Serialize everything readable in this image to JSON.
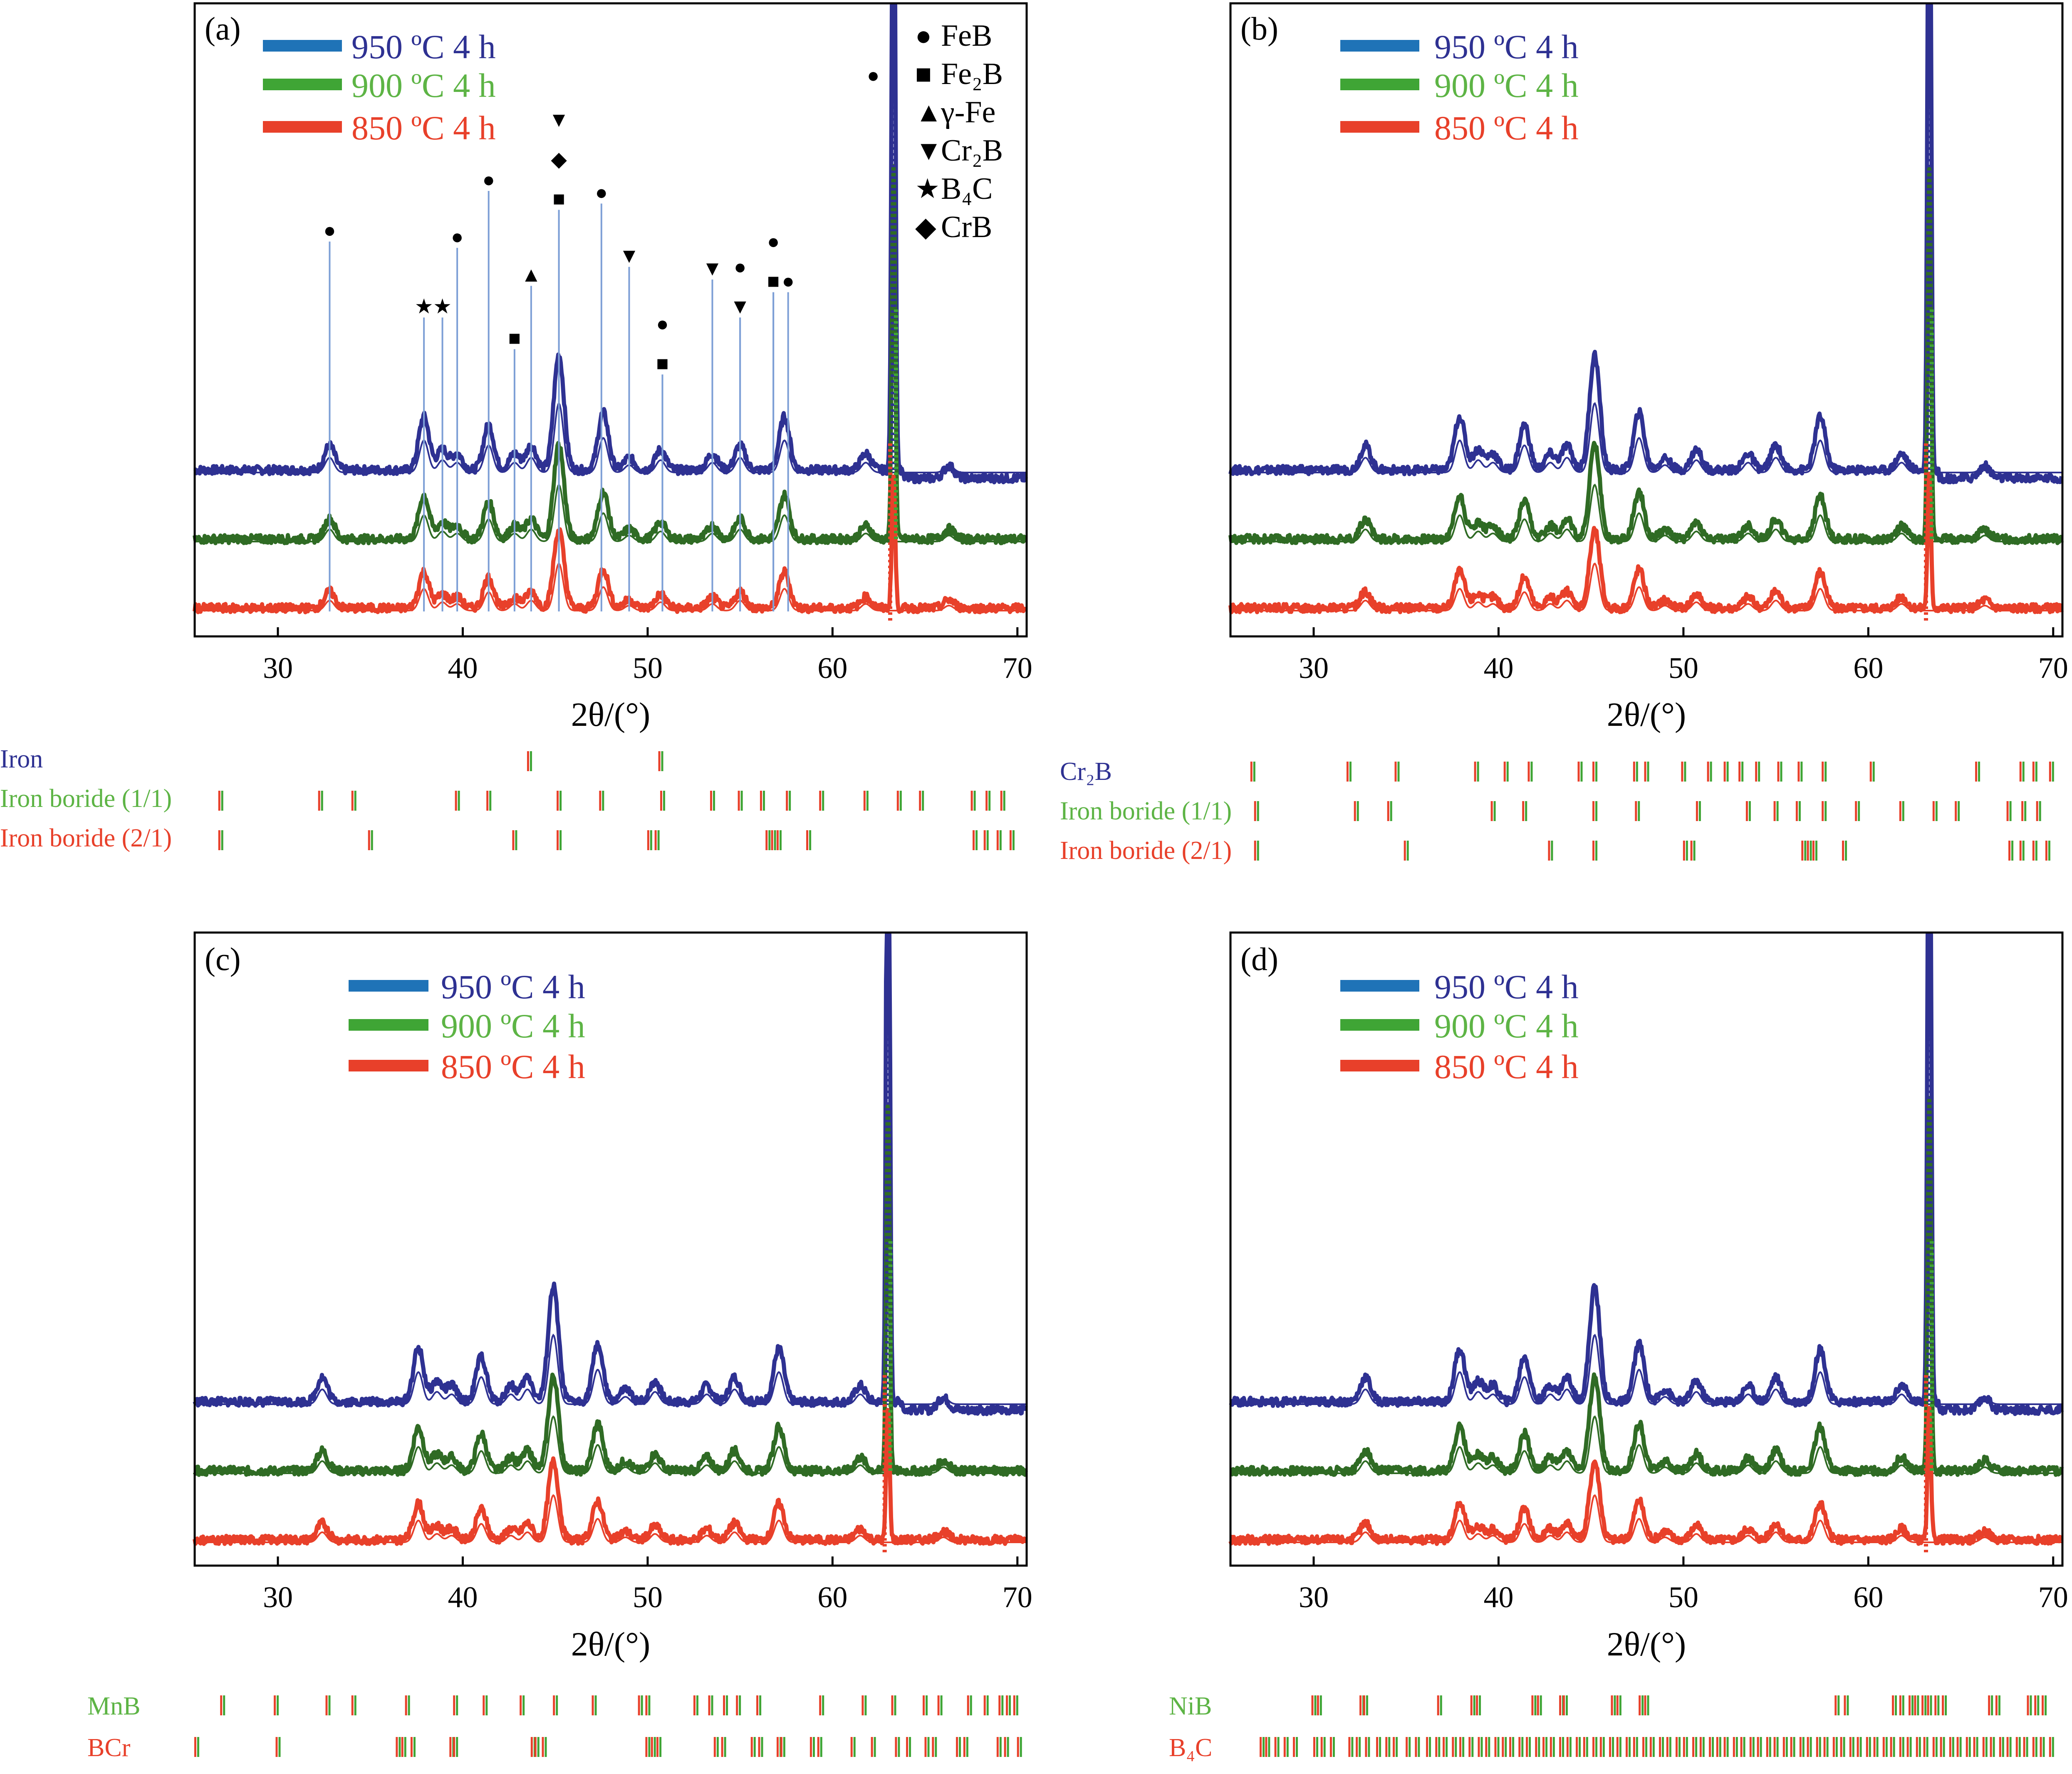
{
  "figure": {
    "colors": {
      "blue": "#2E3192",
      "legend_blue": "#1F73B7",
      "green": "#2F6B24",
      "legend_green": "#3FA535",
      "red": "#E8402A",
      "ref_line": "#7D9FD6",
      "text_blue": "#2E3192",
      "text_green": "#5DB445",
      "text_red": "#E8402A"
    },
    "xlabel": "2θ/(°)",
    "legend": [
      "950 ºC 4 h",
      "900 ºC 4 h",
      "850 ºC 4 h"
    ]
  },
  "chart_data": [
    {
      "panel": "(a)",
      "type": "line",
      "xlabel": "2θ/(°)",
      "xlim": [
        25.5,
        70.5
      ],
      "xticks": [
        30,
        40,
        50,
        60,
        70
      ],
      "series": [
        {
          "name": "950 ºC 4 h",
          "color": "#2E3192"
        },
        {
          "name": "900 ºC 4 h",
          "color": "#2F6B24"
        },
        {
          "name": "850 ºC 4 h",
          "color": "#E8402A"
        }
      ],
      "sharp_peak": {
        "x": 63.3,
        "overshoots_axis": true
      },
      "peaks": [
        {
          "x": 32.8,
          "h": 0.06
        },
        {
          "x": 37.9,
          "h": 0.13
        },
        {
          "x": 38.9,
          "h": 0.05
        },
        {
          "x": 39.7,
          "h": 0.04
        },
        {
          "x": 41.4,
          "h": 0.11
        },
        {
          "x": 42.8,
          "h": 0.04
        },
        {
          "x": 43.7,
          "h": 0.06
        },
        {
          "x": 45.2,
          "h": 0.28
        },
        {
          "x": 47.6,
          "h": 0.14
        },
        {
          "x": 49.0,
          "h": 0.03
        },
        {
          "x": 50.7,
          "h": 0.05
        },
        {
          "x": 53.5,
          "h": 0.04
        },
        {
          "x": 55.0,
          "h": 0.06
        },
        {
          "x": 57.4,
          "h": 0.13
        },
        {
          "x": 61.8,
          "h": 0.04
        },
        {
          "x": 66.3,
          "h": 0.03
        }
      ],
      "phase_markers": [
        {
          "x": 32.8,
          "symbol": "●",
          "phase": "FeB",
          "line_top": 0.35
        },
        {
          "x": 37.9,
          "symbol": "★",
          "phase": "B4C",
          "line_top": 0.47
        },
        {
          "x": 38.9,
          "symbol": "★",
          "phase": "B4C",
          "line_top": 0.47
        },
        {
          "x": 39.7,
          "symbol": "●",
          "phase": "FeB",
          "line_top": 0.36
        },
        {
          "x": 41.4,
          "symbol": "●",
          "phase": "FeB",
          "line_top": 0.27
        },
        {
          "x": 42.8,
          "symbol": "■",
          "phase": "Fe2B",
          "line_top": 0.52
        },
        {
          "x": 43.7,
          "symbol": "▲",
          "phase": "γ-Fe",
          "line_top": 0.42
        },
        {
          "x": 45.2,
          "symbol": "■",
          "phase": "Fe2B",
          "line_top": 0.3
        },
        {
          "x": 45.2,
          "symbol": "◆",
          "phase": "CrB",
          "line_top": 0.3
        },
        {
          "x": 45.2,
          "symbol": "▼",
          "phase": "Cr2B",
          "line_top": 0.3
        },
        {
          "x": 47.5,
          "symbol": "●",
          "phase": "FeB",
          "line_top": 0.29
        },
        {
          "x": 49.0,
          "symbol": "▼",
          "phase": "Cr2B",
          "line_top": 0.39
        },
        {
          "x": 50.8,
          "symbol": "■",
          "phase": "Fe2B",
          "line_top": 0.56
        },
        {
          "x": 50.8,
          "symbol": "●",
          "phase": "FeB",
          "line_top": 0.56
        },
        {
          "x": 53.5,
          "symbol": "▼",
          "phase": "Cr2B",
          "line_top": 0.41
        },
        {
          "x": 55.0,
          "symbol": "▼",
          "phase": "Cr2B",
          "line_top": 0.47
        },
        {
          "x": 55.0,
          "symbol": "●",
          "phase": "FeB",
          "line_top": 0.47
        },
        {
          "x": 56.8,
          "symbol": "■",
          "phase": "Fe2B",
          "line_top": 0.43
        },
        {
          "x": 56.8,
          "symbol": "●",
          "phase": "FeB",
          "line_top": 0.43
        },
        {
          "x": 57.6,
          "symbol": "●",
          "phase": "FeB",
          "line_top": 0.43
        },
        {
          "x": 62.2,
          "symbol": "●",
          "phase": "FeB",
          "line_top": 0.0
        }
      ],
      "phase_legend": [
        {
          "symbol": "●",
          "label": "FeB"
        },
        {
          "symbol": "■",
          "label": "Fe₂B"
        },
        {
          "symbol": "▲",
          "label": "γ-Fe"
        },
        {
          "symbol": "▼",
          "label": "Cr₂B"
        },
        {
          "symbol": "★",
          "label": "B₄C"
        },
        {
          "symbol": "◆",
          "label": "CrB"
        }
      ],
      "reference_rows": [
        {
          "label": "Iron",
          "color": "#2E3192",
          "x": [
            43.6,
            50.7
          ]
        },
        {
          "label": "Iron boride (1/1)",
          "color": "#5DB445",
          "x": [
            26.9,
            32.3,
            34.1,
            39.7,
            41.4,
            45.2,
            47.5,
            50.8,
            53.5,
            55.0,
            56.2,
            57.6,
            59.4,
            61.8,
            63.6,
            64.8,
            67.6,
            68.4,
            69.2
          ]
        },
        {
          "label": "Iron boride (2/1)",
          "color": "#E8402A",
          "x": [
            26.9,
            35.0,
            42.8,
            45.2,
            50.1,
            50.5,
            56.5,
            56.8,
            57.1,
            58.7,
            67.7,
            68.3,
            69.0,
            69.7
          ]
        }
      ]
    },
    {
      "panel": "(b)",
      "type": "line",
      "xlabel": "2θ/(°)",
      "xlim": [
        25.5,
        70.5
      ],
      "xticks": [
        30,
        40,
        50,
        60,
        70
      ],
      "series": [
        {
          "name": "950 ºC 4 h",
          "color": "#2E3192"
        },
        {
          "name": "900 ºC 4 h",
          "color": "#2F6B24"
        },
        {
          "name": "850 ºC 4 h",
          "color": "#E8402A"
        }
      ],
      "sharp_peak": {
        "x": 63.3,
        "overshoots_axis": true
      },
      "peaks": [
        {
          "x": 32.8,
          "h": 0.06
        },
        {
          "x": 37.9,
          "h": 0.13
        },
        {
          "x": 38.9,
          "h": 0.05
        },
        {
          "x": 39.7,
          "h": 0.04
        },
        {
          "x": 41.4,
          "h": 0.11
        },
        {
          "x": 42.8,
          "h": 0.04
        },
        {
          "x": 43.7,
          "h": 0.06
        },
        {
          "x": 45.2,
          "h": 0.28
        },
        {
          "x": 47.6,
          "h": 0.14
        },
        {
          "x": 49.0,
          "h": 0.03
        },
        {
          "x": 50.7,
          "h": 0.05
        },
        {
          "x": 53.5,
          "h": 0.04
        },
        {
          "x": 55.0,
          "h": 0.06
        },
        {
          "x": 57.4,
          "h": 0.13
        },
        {
          "x": 61.8,
          "h": 0.04
        },
        {
          "x": 66.3,
          "h": 0.03
        }
      ],
      "phase_markers": [],
      "phase_legend": [],
      "reference_rows": [
        {
          "label": "Cr₂B",
          "color": "#2E3192",
          "x": [
            26.7,
            31.9,
            34.5,
            38.8,
            40.4,
            41.7,
            44.4,
            45.2,
            47.4,
            48.0,
            50.0,
            51.4,
            52.3,
            53.1,
            54.0,
            55.2,
            56.3,
            57.6,
            60.2,
            65.9,
            68.3,
            69.0,
            69.9
          ]
        },
        {
          "label": "Iron boride (1/1)",
          "color": "#5DB445",
          "x": [
            26.9,
            32.3,
            34.1,
            39.7,
            41.4,
            45.2,
            47.5,
            50.8,
            53.5,
            55.0,
            56.2,
            57.6,
            59.4,
            61.8,
            63.6,
            64.8,
            67.6,
            68.4,
            69.2
          ]
        },
        {
          "label": "Iron boride (2/1)",
          "color": "#E8402A",
          "x": [
            26.9,
            35.0,
            42.8,
            45.2,
            50.1,
            50.5,
            56.5,
            56.8,
            57.1,
            58.7,
            67.7,
            68.3,
            69.0,
            69.7
          ]
        }
      ]
    },
    {
      "panel": "(c)",
      "type": "line",
      "xlabel": "2θ/(°)",
      "xlim": [
        25.5,
        70.5
      ],
      "xticks": [
        30,
        40,
        50,
        60,
        70
      ],
      "series": [
        {
          "name": "950 ºC 4 h",
          "color": "#2E3192"
        },
        {
          "name": "900 ºC 4 h",
          "color": "#2F6B24"
        },
        {
          "name": "850 ºC 4 h",
          "color": "#E8402A"
        }
      ],
      "sharp_peak": {
        "x": 63.0,
        "overshoots_axis": true
      },
      "peaks": [
        {
          "x": 32.4,
          "h": 0.06
        },
        {
          "x": 37.6,
          "h": 0.13
        },
        {
          "x": 38.6,
          "h": 0.05
        },
        {
          "x": 39.4,
          "h": 0.04
        },
        {
          "x": 41.0,
          "h": 0.11
        },
        {
          "x": 42.6,
          "h": 0.04
        },
        {
          "x": 43.5,
          "h": 0.06
        },
        {
          "x": 44.9,
          "h": 0.28
        },
        {
          "x": 47.3,
          "h": 0.14
        },
        {
          "x": 48.8,
          "h": 0.03
        },
        {
          "x": 50.4,
          "h": 0.05
        },
        {
          "x": 53.2,
          "h": 0.04
        },
        {
          "x": 54.7,
          "h": 0.06
        },
        {
          "x": 57.1,
          "h": 0.13
        },
        {
          "x": 61.5,
          "h": 0.04
        },
        {
          "x": 66.0,
          "h": 0.03
        }
      ],
      "phase_markers": [],
      "phase_legend": [],
      "reference_rows": [
        {
          "label": "MnB",
          "color": "#5DB445",
          "x": [
            27.0,
            29.9,
            32.7,
            34.1,
            37.0,
            39.6,
            41.2,
            43.2,
            45.0,
            47.1,
            49.6,
            50.0,
            52.6,
            53.4,
            54.2,
            54.9,
            56.0,
            59.4,
            61.7,
            63.3,
            65.0,
            65.8,
            67.4,
            68.3,
            69.1,
            69.5,
            69.9
          ]
        },
        {
          "label": "BCr",
          "color": "#E8402A",
          "x": [
            25.6,
            30.0,
            36.5,
            36.8,
            37.3,
            39.4,
            39.6,
            43.8,
            44.0,
            44.4,
            50.0,
            50.3,
            50.6,
            53.7,
            54.1,
            55.7,
            56.1,
            57.1,
            57.3,
            58.9,
            59.3,
            61.1,
            62.2,
            63.5,
            64.1,
            65.1,
            65.5,
            66.8,
            67.2,
            69.0,
            69.4,
            70.1
          ]
        }
      ]
    },
    {
      "panel": "(d)",
      "type": "line",
      "xlabel": "2θ/(°)",
      "xlim": [
        25.5,
        70.5
      ],
      "xticks": [
        30,
        40,
        50,
        60,
        70
      ],
      "series": [
        {
          "name": "950 ºC 4 h",
          "color": "#2E3192"
        },
        {
          "name": "900 ºC 4 h",
          "color": "#2F6B24"
        },
        {
          "name": "850 ºC 4 h",
          "color": "#E8402A"
        }
      ],
      "sharp_peak": {
        "x": 63.3,
        "overshoots_axis": true
      },
      "peaks": [
        {
          "x": 32.8,
          "h": 0.06
        },
        {
          "x": 37.9,
          "h": 0.13
        },
        {
          "x": 38.9,
          "h": 0.05
        },
        {
          "x": 39.7,
          "h": 0.04
        },
        {
          "x": 41.4,
          "h": 0.11
        },
        {
          "x": 42.8,
          "h": 0.04
        },
        {
          "x": 43.7,
          "h": 0.06
        },
        {
          "x": 45.2,
          "h": 0.28
        },
        {
          "x": 47.6,
          "h": 0.14
        },
        {
          "x": 49.0,
          "h": 0.03
        },
        {
          "x": 50.7,
          "h": 0.05
        },
        {
          "x": 53.5,
          "h": 0.04
        },
        {
          "x": 55.0,
          "h": 0.06
        },
        {
          "x": 57.4,
          "h": 0.13
        },
        {
          "x": 61.8,
          "h": 0.04
        },
        {
          "x": 66.3,
          "h": 0.03
        }
      ],
      "phase_markers": [],
      "phase_legend": [],
      "reference_rows": [
        {
          "label": "NiB",
          "color": "#5DB445",
          "x": [
            30.0,
            30.3,
            32.6,
            32.8,
            36.8,
            38.6,
            38.9,
            41.9,
            42.2,
            43.4,
            43.6,
            46.2,
            46.5,
            47.7,
            48.0,
            58.3,
            58.8,
            61.4,
            61.8,
            62.3,
            62.6,
            63.0,
            63.3,
            63.7,
            64.1,
            66.6,
            67.0,
            68.7,
            69.1,
            69.5
          ]
        },
        {
          "label": "B₄C",
          "color": "#E8402A",
          "x": [
            27.2,
            27.5,
            28.0,
            28.5,
            29.0,
            30.1,
            30.5,
            31.0,
            32.0,
            32.4,
            32.9,
            33.5,
            34.0,
            34.4,
            35.1,
            35.6,
            36.2,
            36.7,
            37.1,
            37.6,
            38.0,
            38.5,
            39.0,
            39.4,
            39.9,
            40.3,
            40.7,
            41.2,
            41.6,
            42.1,
            42.5,
            42.9,
            43.4,
            43.8,
            44.3,
            44.7,
            45.2,
            45.6,
            46.1,
            46.5,
            47.0,
            47.4,
            47.9,
            48.3,
            48.8,
            49.2,
            49.7,
            50.1,
            50.6,
            51.0,
            51.5,
            51.9,
            52.3,
            52.8,
            53.2,
            53.7,
            54.1,
            54.6,
            55.0,
            55.5,
            55.9,
            56.4,
            56.8,
            57.3,
            57.7,
            58.2,
            58.6,
            59.1,
            59.5,
            60.0,
            60.4,
            60.9,
            61.3,
            61.8,
            62.2,
            62.7,
            63.1,
            63.6,
            64.0,
            64.5,
            64.9,
            65.4,
            65.8,
            66.3,
            66.7,
            67.2,
            67.6,
            68.1,
            68.5,
            69.0,
            69.4,
            69.9
          ]
        }
      ]
    }
  ]
}
